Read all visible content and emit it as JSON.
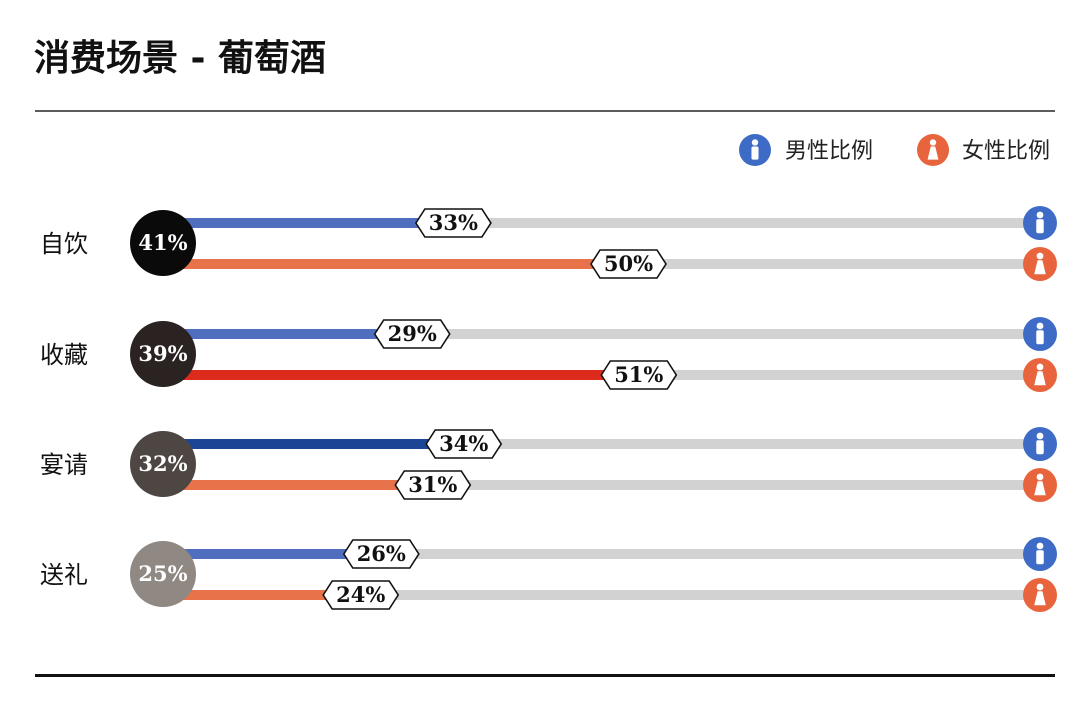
{
  "chart_data": {
    "type": "bar",
    "title": "消费场景 - 葡萄酒",
    "unit": "%",
    "categories": [
      "自饮",
      "收藏",
      "宴请",
      "送礼"
    ],
    "totals": [
      41,
      39,
      32,
      25
    ],
    "series": [
      {
        "name": "男性比例",
        "values": [
          33,
          29,
          34,
          26
        ]
      },
      {
        "name": "女性比例",
        "values": [
          50,
          51,
          31,
          24
        ]
      }
    ],
    "legend_position": "top-right",
    "grid": false
  },
  "colors": {
    "track": "#d2d2d2",
    "male_bars": [
      "#4f6ebd",
      "#4f6ebd",
      "#1d4595",
      "#4f6ebd"
    ],
    "female_bars": [
      "#e8734a",
      "#dc2a1c",
      "#e8734a",
      "#e8734a"
    ],
    "total_circles": [
      "#0a0a0a",
      "#2a2322",
      "#4d4643",
      "#8f8883"
    ],
    "male_icon": "#3d6bc5",
    "female_icon": "#e8643c",
    "label_border": "#111111"
  },
  "icons": {
    "male": "male-person-icon",
    "female": "female-person-icon"
  }
}
